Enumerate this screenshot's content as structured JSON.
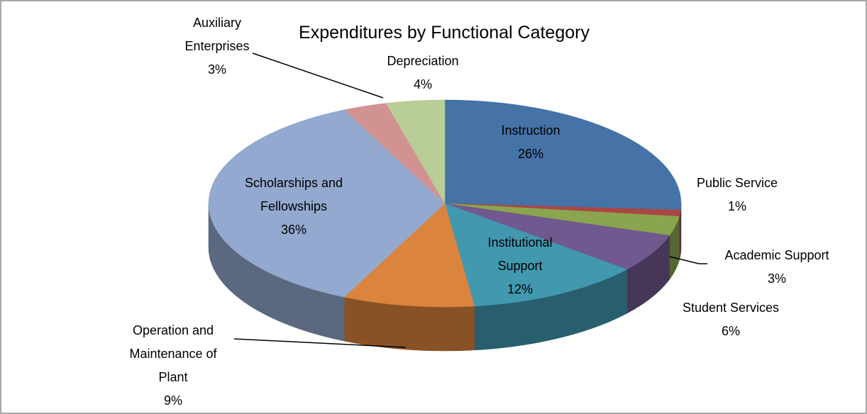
{
  "chart_data": {
    "type": "pie3d",
    "title": "Expenditures by Functional Category",
    "categories": [
      "Instruction",
      "Public Service",
      "Academic Support",
      "Student Services",
      "Institutional Support",
      "Operation and Maintenance of Plant",
      "Scholarships and Fellowships",
      "Auxiliary Enterprises",
      "Depreciation"
    ],
    "values": [
      26,
      1,
      3,
      6,
      12,
      9,
      36,
      3,
      4
    ],
    "value_labels": [
      "26%",
      "1%",
      "3%",
      "6%",
      "12%",
      "9%",
      "36%",
      "3%",
      "4%"
    ],
    "colors": [
      "#4572a7",
      "#aa4643",
      "#89a54e",
      "#71588f",
      "#4198af",
      "#db843d",
      "#93a9cf",
      "#d19392",
      "#b9cd96"
    ]
  }
}
